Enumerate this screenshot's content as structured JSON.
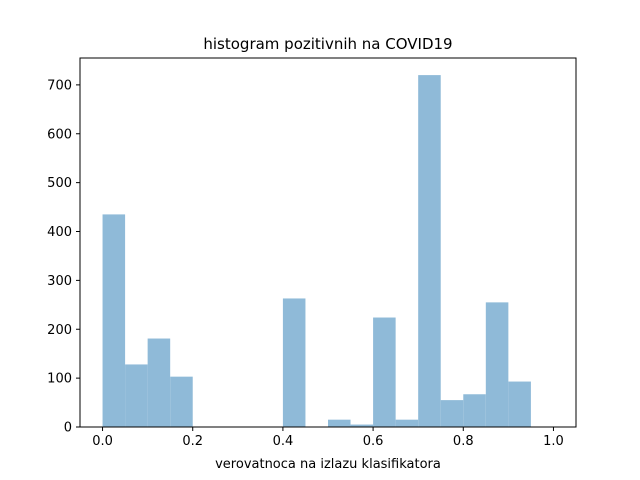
{
  "chart_data": {
    "type": "bar",
    "title": "histogram pozitivnih na COVID19",
    "xlabel": "verovatnoca na izlazu klasifikatora",
    "ylabel": "",
    "xlim": [
      -0.05,
      1.05
    ],
    "ylim": [
      0,
      755
    ],
    "x_ticks": [
      0.0,
      0.2,
      0.4,
      0.6,
      0.8,
      1.0
    ],
    "x_tick_labels": [
      "0.0",
      "0.2",
      "0.4",
      "0.6",
      "0.8",
      "1.0"
    ],
    "y_ticks": [
      0,
      100,
      200,
      300,
      400,
      500,
      600,
      700
    ],
    "y_tick_labels": [
      "0",
      "100",
      "200",
      "300",
      "400",
      "500",
      "600",
      "700"
    ],
    "bin_edges": [
      0.0,
      0.05,
      0.1,
      0.15,
      0.2,
      0.25,
      0.3,
      0.35,
      0.4,
      0.45,
      0.5,
      0.55,
      0.6,
      0.65,
      0.7,
      0.75,
      0.8,
      0.85,
      0.9,
      0.95,
      1.0
    ],
    "values": [
      435,
      128,
      181,
      103,
      0,
      0,
      0,
      0,
      263,
      0,
      15,
      5,
      224,
      15,
      720,
      55,
      67,
      255,
      93,
      0
    ],
    "bar_color": "#8fbad8",
    "grid": false,
    "legend": "none"
  }
}
